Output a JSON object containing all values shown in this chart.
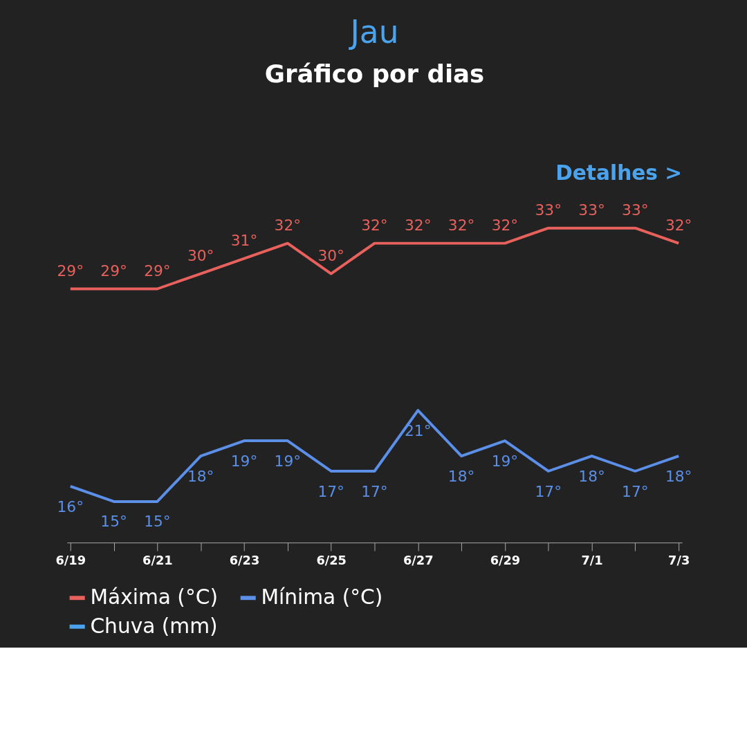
{
  "chart_data": {
    "type": "line",
    "title": "Jau",
    "subtitle": "Gráfico por dias",
    "annotations": [
      "Detalhes >"
    ],
    "categories": [
      "6/19",
      null,
      "6/21",
      null,
      "6/23",
      null,
      "6/25",
      null,
      "6/27",
      null,
      "6/29",
      null,
      "7/1",
      null,
      "7/3"
    ],
    "series": [
      {
        "name": "Máxima (°C)",
        "color": "#e8615c",
        "values": [
          29,
          29,
          29,
          30,
          31,
          32,
          30,
          32,
          32,
          32,
          32,
          33,
          33,
          33,
          32
        ],
        "value_labels": [
          "29°",
          "29°",
          "29°",
          "30°",
          "31°",
          "32°",
          "30°",
          "32°",
          "32°",
          "32°",
          "32°",
          "33°",
          "33°",
          "33°",
          "32°"
        ]
      },
      {
        "name": "Mínima (°C)",
        "color": "#5b8fe8",
        "values": [
          16,
          15,
          15,
          18,
          19,
          19,
          17,
          17,
          21,
          18,
          19,
          17,
          18,
          17,
          18
        ],
        "value_labels": [
          "16°",
          "15°",
          "15°",
          "18°",
          "19°",
          "19°",
          "17°",
          "17°",
          "21°",
          "18°",
          "19°",
          "17°",
          "18°",
          "17°",
          "18°"
        ]
      },
      {
        "name": "Chuva (mm)",
        "type": "bar",
        "color": "#4aa3ec",
        "values": [
          null,
          null,
          null,
          null,
          null,
          null,
          null,
          null,
          null,
          null,
          null,
          null,
          null,
          null,
          null
        ]
      }
    ],
    "tick_labels": "x",
    "grid": false,
    "legend": "bottom",
    "marker": "none",
    "line_style": "solid"
  }
}
